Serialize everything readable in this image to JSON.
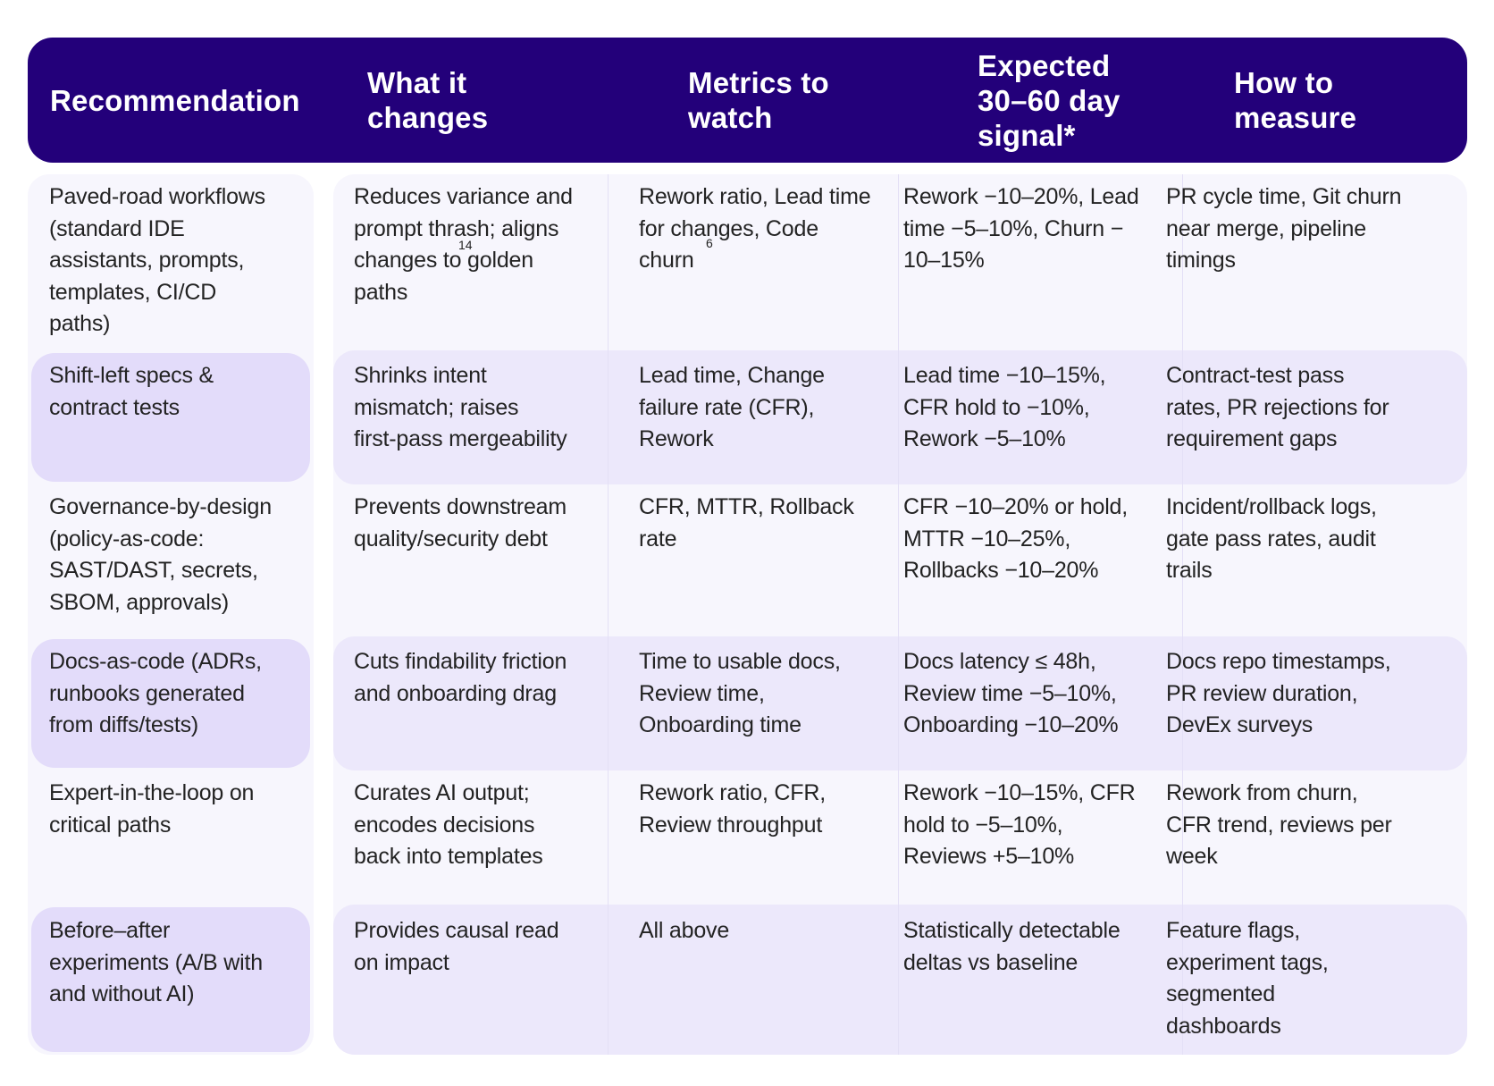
{
  "colors": {
    "header_bg": "#23007a",
    "header_text": "#ffffff",
    "panel_bg": "#f7f6fd",
    "highlight_left": "#e3dcfa",
    "highlight_right": "#ece8fb",
    "divider": "#e4e0f6",
    "body_text": "#232323"
  },
  "table": {
    "headers": [
      {
        "lines": [
          "Recommendation"
        ]
      },
      {
        "lines": [
          "What it",
          "changes"
        ]
      },
      {
        "lines": [
          "Metrics to",
          "watch"
        ]
      },
      {
        "lines": [
          "Expected",
          "30–60 day",
          "signal*"
        ]
      },
      {
        "lines": [
          "How to",
          "measure"
        ]
      }
    ],
    "rows": [
      {
        "highlighted": false,
        "recommendation": [
          "Paved-road workflows",
          "(standard IDE",
          "assistants, prompts,",
          "templates, CI/CD",
          "paths)"
        ],
        "what_it_changes": [
          "Reduces variance and",
          "prompt thrash; aligns",
          "changes to golden",
          "paths"
        ],
        "what_it_changes_footnote": "14",
        "metrics": [
          "Rework ratio, Lead time",
          "for changes, Code",
          "churn"
        ],
        "metrics_footnote": "6",
        "signal": [
          "Rework −10–20%, Lead",
          "time −5–10%, Churn −",
          "10–15%"
        ],
        "measure": [
          "PR cycle time, Git churn",
          "near merge, pipeline",
          "timings"
        ]
      },
      {
        "highlighted": true,
        "recommendation": [
          "Shift-left specs &",
          "contract tests"
        ],
        "what_it_changes": [
          "Shrinks intent",
          "mismatch; raises",
          "first-pass mergeability"
        ],
        "metrics": [
          "Lead time, Change",
          "failure rate (CFR),",
          "Rework"
        ],
        "signal": [
          "Lead time −10–15%,",
          "CFR hold to −10%,",
          "Rework −5–10%"
        ],
        "measure": [
          "Contract-test pass",
          "rates, PR rejections for",
          "requirement gaps"
        ]
      },
      {
        "highlighted": false,
        "recommendation": [
          "Governance-by-design",
          "(policy-as-code:",
          "SAST/DAST, secrets,",
          "SBOM, approvals)"
        ],
        "what_it_changes": [
          "Prevents downstream",
          "quality/security debt"
        ],
        "metrics": [
          "CFR, MTTR, Rollback",
          "rate"
        ],
        "signal": [
          "CFR −10–20% or hold,",
          "MTTR −10–25%,",
          "Rollbacks −10–20%"
        ],
        "measure": [
          "Incident/rollback logs,",
          "gate pass rates, audit",
          "trails"
        ]
      },
      {
        "highlighted": true,
        "recommendation": [
          "Docs-as-code (ADRs,",
          "runbooks generated",
          "from diffs/tests)"
        ],
        "what_it_changes": [
          "Cuts findability friction",
          "and onboarding drag"
        ],
        "metrics": [
          "Time to usable docs,",
          "Review time,",
          "Onboarding time"
        ],
        "signal": [
          "Docs latency ≤ 48h,",
          "Review time −5–10%,",
          "Onboarding −10–20%"
        ],
        "measure": [
          "Docs repo timestamps,",
          "PR review duration,",
          "DevEx surveys"
        ]
      },
      {
        "highlighted": false,
        "recommendation": [
          "Expert-in-the-loop on",
          "critical paths"
        ],
        "what_it_changes": [
          "Curates AI output;",
          "encodes decisions",
          "back into templates"
        ],
        "metrics": [
          "Rework ratio, CFR,",
          "Review throughput"
        ],
        "signal": [
          "Rework −10–15%, CFR",
          "hold to −5–10%,",
          "Reviews +5–10%"
        ],
        "measure": [
          "Rework from churn,",
          "CFR trend, reviews per",
          "week"
        ]
      },
      {
        "highlighted": true,
        "recommendation": [
          "Before–after",
          "experiments (A/B with",
          "and without AI)"
        ],
        "what_it_changes": [
          "Provides causal read",
          "on impact"
        ],
        "metrics": [
          "All above"
        ],
        "signal": [
          "Statistically detectable",
          "deltas vs baseline"
        ],
        "measure": [
          "Feature flags,",
          "experiment tags,",
          "segmented",
          "dashboards"
        ]
      }
    ]
  }
}
